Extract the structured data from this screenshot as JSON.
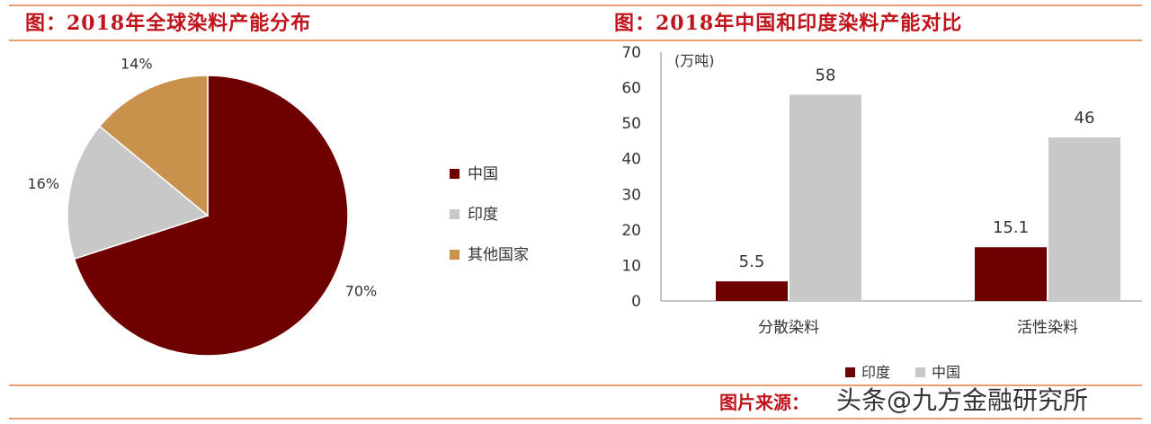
{
  "titles": {
    "left": "图：2018年全球染料产能分布",
    "right": "图：2018年中国和印度染料产能对比"
  },
  "footer": {
    "source": "图片来源：",
    "watermark": "头条@九方金融研究所"
  },
  "colors": {
    "china": "#6e0000",
    "india": "#c8c8c8",
    "other": "#c8914c",
    "accent": "#c0141c"
  },
  "chart_data": [
    {
      "type": "pie",
      "slices": [
        {
          "label": "中国",
          "value": 70,
          "text": "70%"
        },
        {
          "label": "印度",
          "value": 16,
          "text": "16%"
        },
        {
          "label": "其他国家",
          "value": 14,
          "text": "14%"
        }
      ],
      "legend": "right"
    },
    {
      "type": "bar",
      "categories": [
        "分散染料",
        "活性染料"
      ],
      "unit": "(万吨)",
      "ylim": [
        0,
        70
      ],
      "yticks": [
        0,
        10,
        20,
        30,
        40,
        50,
        60,
        70
      ],
      "series": [
        {
          "name": "印度",
          "values": [
            5.5,
            15.1
          ]
        },
        {
          "name": "中国",
          "values": [
            58,
            46
          ]
        }
      ],
      "legend": "bottom"
    }
  ]
}
